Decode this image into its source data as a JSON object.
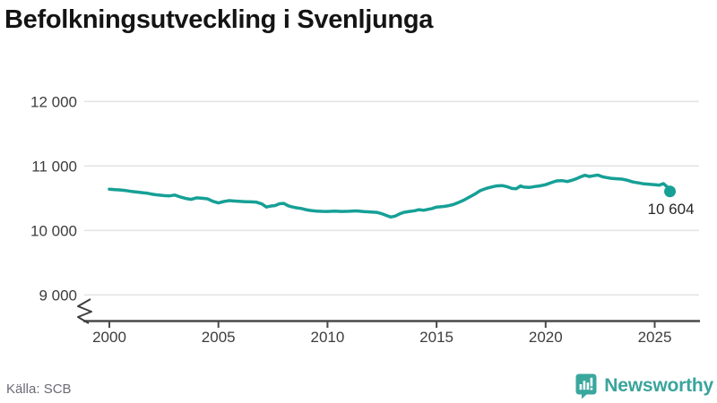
{
  "title": "Befolkningsutveckling i Svenljunga",
  "footer": {
    "source": "Källa: SCB",
    "brand_name": "Newsworthy"
  },
  "colors": {
    "line": "#16a096",
    "grid": "#e4e4e4",
    "axis": "#4a4a4a",
    "title": "#141414",
    "tick_label": "#3d3d3d",
    "annotation": "#262626",
    "source_text": "#6b6b74",
    "brand_teal": "#3aa79e",
    "background": "#ffffff"
  },
  "chart_data": {
    "type": "line",
    "title": "Befolkningsutveckling i Svenljunga",
    "xlabel": "",
    "ylabel": "",
    "grid": true,
    "legend": "none",
    "x_ticks": [
      2000,
      2005,
      2010,
      2015,
      2020,
      2025
    ],
    "x_tick_labels": [
      "2000",
      "2005",
      "2010",
      "2015",
      "2020",
      "2025"
    ],
    "y_ticks": [
      9000,
      10000,
      11000,
      12000
    ],
    "y_tick_labels": [
      "9 000",
      "10 000",
      "11 000",
      "12 000"
    ],
    "ylim": [
      9000,
      12000
    ],
    "xlim": [
      2000,
      2025.7
    ],
    "y_axis_break": true,
    "end_label": "10 604",
    "end_value": 10604,
    "series": [
      {
        "name": "Befolkning",
        "color": "#16a096",
        "points": [
          [
            2000.0,
            10640
          ],
          [
            2000.25,
            10632
          ],
          [
            2000.5,
            10628
          ],
          [
            2000.75,
            10618
          ],
          [
            2001.0,
            10606
          ],
          [
            2001.25,
            10596
          ],
          [
            2001.5,
            10586
          ],
          [
            2001.75,
            10576
          ],
          [
            2002.0,
            10560
          ],
          [
            2002.25,
            10548
          ],
          [
            2002.5,
            10540
          ],
          [
            2002.75,
            10536
          ],
          [
            2003.0,
            10548
          ],
          [
            2003.25,
            10520
          ],
          [
            2003.5,
            10496
          ],
          [
            2003.75,
            10482
          ],
          [
            2004.0,
            10506
          ],
          [
            2004.25,
            10498
          ],
          [
            2004.5,
            10490
          ],
          [
            2004.75,
            10452
          ],
          [
            2005.0,
            10426
          ],
          [
            2005.25,
            10448
          ],
          [
            2005.5,
            10462
          ],
          [
            2005.75,
            10456
          ],
          [
            2006.0,
            10450
          ],
          [
            2006.25,
            10446
          ],
          [
            2006.5,
            10443
          ],
          [
            2006.75,
            10438
          ],
          [
            2007.0,
            10410
          ],
          [
            2007.2,
            10362
          ],
          [
            2007.4,
            10378
          ],
          [
            2007.6,
            10386
          ],
          [
            2007.8,
            10414
          ],
          [
            2008.0,
            10420
          ],
          [
            2008.2,
            10382
          ],
          [
            2008.4,
            10362
          ],
          [
            2008.6,
            10350
          ],
          [
            2008.8,
            10340
          ],
          [
            2009.0,
            10322
          ],
          [
            2009.25,
            10308
          ],
          [
            2009.5,
            10300
          ],
          [
            2009.75,
            10296
          ],
          [
            2010.0,
            10294
          ],
          [
            2010.33,
            10298
          ],
          [
            2010.67,
            10295
          ],
          [
            2011.0,
            10297
          ],
          [
            2011.33,
            10303
          ],
          [
            2011.67,
            10291
          ],
          [
            2012.0,
            10286
          ],
          [
            2012.25,
            10280
          ],
          [
            2012.5,
            10258
          ],
          [
            2012.75,
            10226
          ],
          [
            2012.9,
            10208
          ],
          [
            2013.1,
            10222
          ],
          [
            2013.3,
            10256
          ],
          [
            2013.5,
            10280
          ],
          [
            2013.75,
            10294
          ],
          [
            2014.0,
            10306
          ],
          [
            2014.2,
            10322
          ],
          [
            2014.4,
            10312
          ],
          [
            2014.6,
            10326
          ],
          [
            2014.8,
            10340
          ],
          [
            2015.0,
            10362
          ],
          [
            2015.25,
            10368
          ],
          [
            2015.5,
            10380
          ],
          [
            2015.75,
            10400
          ],
          [
            2016.0,
            10432
          ],
          [
            2016.25,
            10470
          ],
          [
            2016.5,
            10516
          ],
          [
            2016.75,
            10562
          ],
          [
            2017.0,
            10616
          ],
          [
            2017.25,
            10648
          ],
          [
            2017.5,
            10672
          ],
          [
            2017.75,
            10690
          ],
          [
            2018.0,
            10696
          ],
          [
            2018.25,
            10676
          ],
          [
            2018.45,
            10652
          ],
          [
            2018.65,
            10646
          ],
          [
            2018.85,
            10690
          ],
          [
            2019.0,
            10672
          ],
          [
            2019.25,
            10666
          ],
          [
            2019.5,
            10680
          ],
          [
            2019.75,
            10692
          ],
          [
            2020.0,
            10710
          ],
          [
            2020.25,
            10740
          ],
          [
            2020.5,
            10768
          ],
          [
            2020.75,
            10772
          ],
          [
            2021.0,
            10758
          ],
          [
            2021.2,
            10778
          ],
          [
            2021.4,
            10800
          ],
          [
            2021.6,
            10830
          ],
          [
            2021.8,
            10856
          ],
          [
            2022.0,
            10836
          ],
          [
            2022.2,
            10848
          ],
          [
            2022.4,
            10858
          ],
          [
            2022.6,
            10832
          ],
          [
            2022.8,
            10820
          ],
          [
            2023.0,
            10808
          ],
          [
            2023.25,
            10802
          ],
          [
            2023.5,
            10796
          ],
          [
            2023.75,
            10778
          ],
          [
            2024.0,
            10752
          ],
          [
            2024.25,
            10738
          ],
          [
            2024.5,
            10722
          ],
          [
            2024.75,
            10716
          ],
          [
            2025.0,
            10708
          ],
          [
            2025.2,
            10702
          ],
          [
            2025.4,
            10726
          ],
          [
            2025.55,
            10682
          ],
          [
            2025.7,
            10604
          ]
        ]
      }
    ]
  }
}
